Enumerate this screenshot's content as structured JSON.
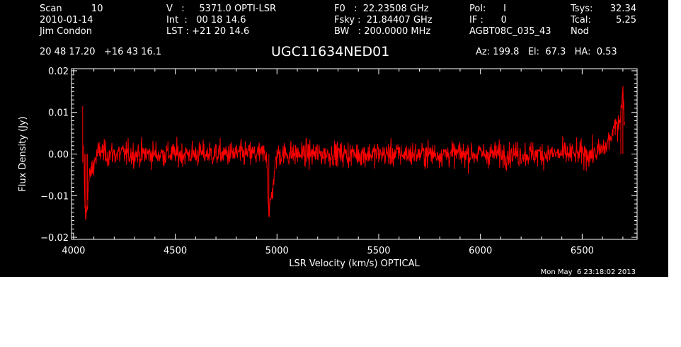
{
  "header": {
    "col1": [
      "Scan          10",
      "2010-01-14",
      "Jim Condon"
    ],
    "col2": [
      "V   :     5371.0 OPTI-LSR",
      "Int  :   00 18 14.6",
      "LST : +21 20 14.6"
    ],
    "col3": [
      "F0   :  22.23508 GHz",
      "Fsky :  21.84407 GHz",
      "BW   : 200.0000 MHz"
    ],
    "col4": [
      "Pol:      I",
      "IF :      0",
      "AGBT08C_035_43"
    ],
    "col5": [
      "Tsys:",
      "Tcal:",
      "Nod"
    ],
    "col5_values": [
      "32.34",
      "5.25",
      ""
    ],
    "coords": "20 48 17.20   +16 43 16.1",
    "source": "UGC11634NED01",
    "pointing": "Az: 199.8   El:  67.3   HA:  0.53"
  },
  "timestamp": "Mon May  6 23:18:02 2013",
  "chart_data": {
    "type": "line",
    "title": "UGC11634NED01",
    "xlabel": "LSR Velocity (km/s) OPTICAL",
    "ylabel": "Flux Density (Jy)",
    "xlim": [
      3990,
      6770
    ],
    "ylim": [
      -0.0205,
      0.0205
    ],
    "xticks": [
      4000,
      4500,
      5000,
      5500,
      6000,
      6500
    ],
    "xtick_labels": [
      "4000",
      "4500",
      "5000",
      "5500",
      "6000",
      "6500"
    ],
    "yticks": [
      -0.02,
      -0.01,
      0.0,
      0.01,
      0.02
    ],
    "ytick_labels": [
      "−0.02",
      "−0.01",
      "0.00",
      "0.01",
      "0.02"
    ],
    "series": [
      {
        "color": "#ff0000",
        "x": [
          4050,
          4056,
          4062,
          4068,
          4074,
          4080,
          4090,
          4100,
          4110,
          4120,
          4135,
          4150,
          4175,
          4200,
          4250,
          4300,
          4350,
          4400,
          4450,
          4500,
          4550,
          4600,
          4650,
          4700,
          4750,
          4800,
          4850,
          4900,
          4950,
          4960,
          5000,
          5050,
          5100,
          5150,
          5200,
          5250,
          5300,
          5350,
          5400,
          5450,
          5500,
          5550,
          5600,
          5650,
          5700,
          5750,
          5800,
          5850,
          5900,
          5950,
          6000,
          6050,
          6100,
          6150,
          6200,
          6250,
          6300,
          6350,
          6400,
          6450,
          6500,
          6550,
          6600,
          6620,
          6640,
          6660,
          6680,
          6690,
          6700,
          6710
        ],
        "y": [
          0.0,
          -0.013,
          -0.0155,
          -0.011,
          -0.008,
          -0.005,
          -0.004,
          -0.002,
          -0.001,
          0.0,
          0.001,
          0.0,
          0.0,
          0.0,
          0.0,
          0.0,
          0.0,
          0.0,
          0.0,
          0.0,
          0.0,
          0.0,
          0.0,
          0.0,
          0.0,
          0.0,
          0.0,
          0.0,
          0.0,
          -0.015,
          0.0,
          0.0,
          0.0,
          0.0,
          0.0,
          0.0,
          0.0,
          0.0,
          0.0,
          0.0,
          0.0,
          0.0,
          0.0,
          0.0,
          0.0,
          0.0,
          0.0,
          0.0,
          0.0,
          0.0,
          0.0,
          0.0,
          0.0,
          0.0,
          0.0,
          0.0,
          0.0,
          0.0,
          0.0,
          0.0,
          0.0,
          0.0,
          0.001,
          0.002,
          0.004,
          0.006,
          0.008,
          0.01,
          0.0145,
          0.007
        ],
        "noise_sigma": 0.003
      }
    ]
  }
}
